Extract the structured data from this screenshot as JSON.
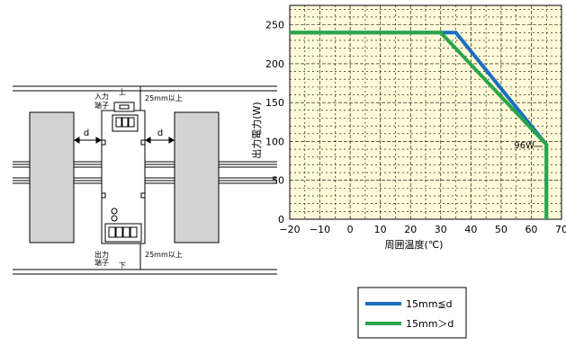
{
  "diagram": {
    "top_terminal_label_line1": "入力",
    "top_terminal_label_line2": "端子",
    "top_direction": "上",
    "bottom_terminal_label_line1": "出力",
    "bottom_terminal_label_line2": "端子",
    "bottom_direction": "下",
    "top_clearance": "25mm以上",
    "bottom_clearance": "25mm以上",
    "left_gap_label": "d",
    "right_gap_label": "d"
  },
  "chart_data": {
    "type": "line",
    "xlabel": "周囲温度(℃)",
    "ylabel": "出力電力(W)",
    "xlim": [
      -20,
      70
    ],
    "ylim": [
      0,
      250
    ],
    "x_ticks": [
      -20,
      -10,
      0,
      10,
      20,
      30,
      40,
      50,
      60,
      70
    ],
    "x_tick_labels": [
      "−20",
      "−10",
      "0",
      "10",
      "20",
      "30",
      "40",
      "50",
      "60",
      "70"
    ],
    "y_ticks": [
      0,
      50,
      100,
      150,
      200,
      250
    ],
    "y_tick_labels": [
      "0",
      "50",
      "100",
      "150",
      "200",
      "250"
    ],
    "grid": true,
    "background_color": "#fffbd8",
    "grid_color": "#000000",
    "annotation": "96W",
    "annotation_point": [
      65,
      96
    ],
    "legend_position": "bottom",
    "series": [
      {
        "name": "15mm≦d",
        "color": "#1a6fbf",
        "x": [
          -20,
          35,
          65,
          65
        ],
        "y": [
          240,
          240,
          96,
          0
        ]
      },
      {
        "name": "15mm＞d",
        "color": "#2aa64a",
        "x": [
          -20,
          30,
          65,
          65
        ],
        "y": [
          240,
          240,
          96,
          0
        ]
      }
    ]
  }
}
